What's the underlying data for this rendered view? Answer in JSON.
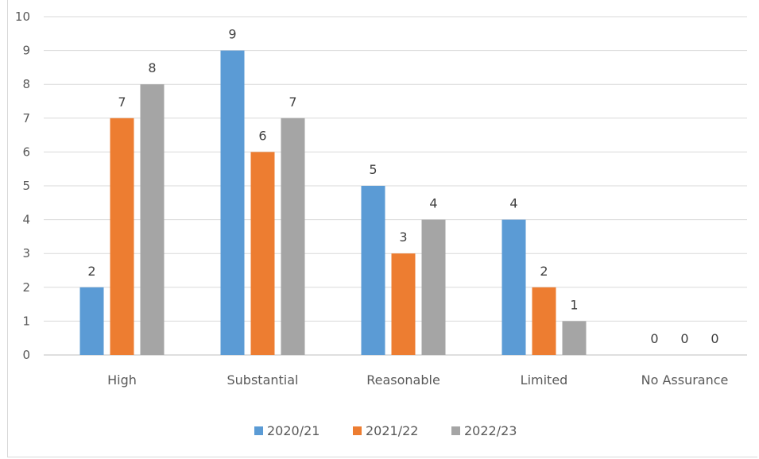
{
  "chart_data": {
    "type": "bar",
    "title": "",
    "xlabel": "",
    "ylabel": "",
    "ylim": [
      0,
      10
    ],
    "yticks": [
      "0",
      "1",
      "2",
      "3",
      "4",
      "5",
      "6",
      "7",
      "8",
      "9",
      "10"
    ],
    "categories": [
      "High",
      "Substantial",
      "Reasonable",
      "Limited",
      "No Assurance"
    ],
    "series": [
      {
        "name": "2020/21",
        "color": "#5b9bd5",
        "values": [
          2,
          9,
          5,
          4,
          0
        ]
      },
      {
        "name": "2021/22",
        "color": "#ed7d31",
        "values": [
          7,
          6,
          3,
          2,
          0
        ]
      },
      {
        "name": "2022/23",
        "color": "#a5a5a5",
        "values": [
          8,
          7,
          4,
          1,
          0
        ]
      }
    ],
    "data_labels": true,
    "grid": true,
    "legend_position": "bottom"
  }
}
